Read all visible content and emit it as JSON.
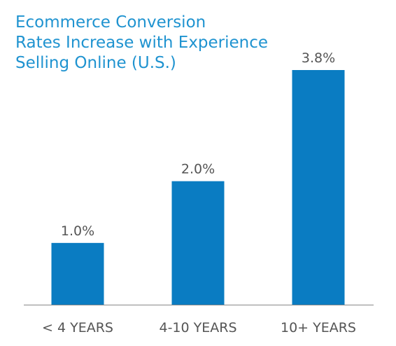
{
  "chart_data": {
    "type": "bar",
    "title_lines": [
      "Ecommerce Conversion",
      "Rates Increase with Experience",
      "Selling Online (U.S.)"
    ],
    "categories": [
      "< 4 YEARS",
      "4-10 YEARS",
      "10+ YEARS"
    ],
    "values": [
      1.0,
      2.0,
      3.8
    ],
    "data_labels": [
      "1.0%",
      "2.0%",
      "3.8%"
    ],
    "xlabel": "",
    "ylabel": "",
    "ylim": [
      0,
      3.8
    ],
    "grid": false,
    "legend": "none",
    "bar_color": "#0a7cc2",
    "axis_color": "#888888"
  }
}
